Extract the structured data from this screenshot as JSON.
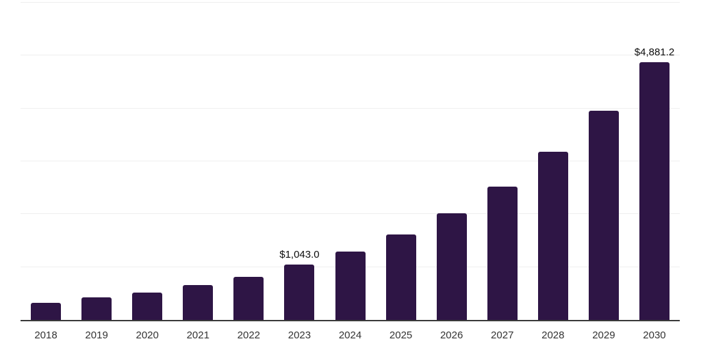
{
  "chart_data": {
    "type": "bar",
    "title": "",
    "xlabel": "",
    "ylabel": "",
    "categories": [
      "2018",
      "2019",
      "2020",
      "2021",
      "2022",
      "2023",
      "2024",
      "2025",
      "2026",
      "2027",
      "2028",
      "2029",
      "2030"
    ],
    "values": [
      325,
      425,
      520,
      660,
      815,
      1043.0,
      1295,
      1615,
      2015,
      2520,
      3180,
      3955,
      4881.2
    ],
    "value_labels": [
      null,
      null,
      null,
      null,
      null,
      "$1,043.0",
      null,
      null,
      null,
      null,
      null,
      null,
      "$4,881.2"
    ],
    "ylim": [
      0,
      6000
    ],
    "grid_step": 1000,
    "grid": true,
    "legend": false,
    "y_tick_labels_visible": false,
    "bar_color": "#2e1545",
    "axis_line_color": "#3a3a3a",
    "gridline_color": "#efefef",
    "tick_label_color": "#333333",
    "value_label_color": "#0d0d0d"
  }
}
